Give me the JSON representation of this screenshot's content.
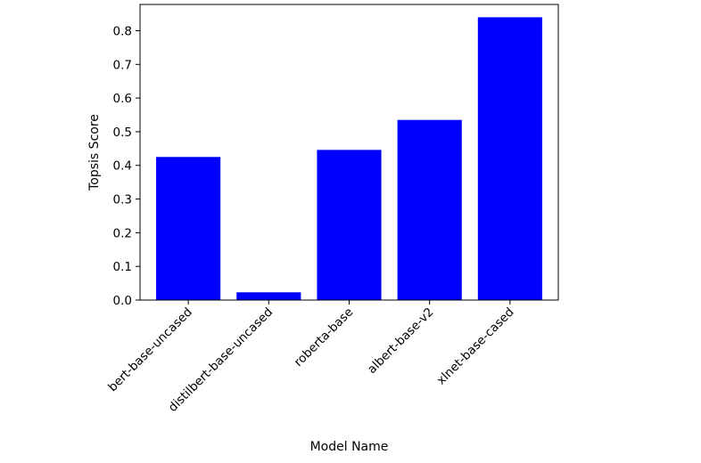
{
  "chart_data": {
    "type": "bar",
    "title": "",
    "xlabel": "Model Name",
    "ylabel": "Topsis Score",
    "categories": [
      "bert-base-uncased",
      "distilbert-base-uncased",
      "roberta-base",
      "albert-base-v2",
      "xlnet-base-cased"
    ],
    "values": [
      0.425,
      0.023,
      0.446,
      0.535,
      0.84
    ],
    "ylim": [
      0,
      0.878
    ],
    "yticks": [
      "0.0",
      "0.1",
      "0.2",
      "0.3",
      "0.4",
      "0.5",
      "0.6",
      "0.7",
      "0.8"
    ],
    "bar_color": "#0000ff",
    "grid": false,
    "legend": "none"
  }
}
